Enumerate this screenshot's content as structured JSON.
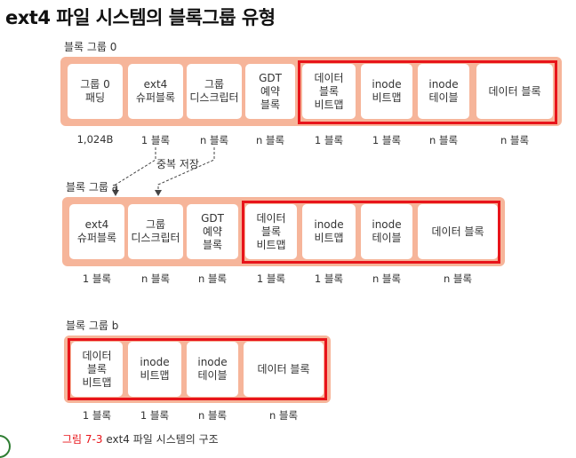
{
  "title": "ext4 파일 시스템의 블록그룹 유형",
  "groups": [
    {
      "label": "블록 그룹 0",
      "cells": [
        {
          "text": "그룹 0\n패딩",
          "size": "1,024B"
        },
        {
          "text": "ext4\n슈퍼블록",
          "size": "1 블록"
        },
        {
          "text": "그룹\n디스크립터",
          "size": "n 블록"
        },
        {
          "text": "GDT\n예약\n블록",
          "size": "n 블록"
        },
        {
          "text": "데이터\n블록\n비트맵",
          "size": "1 블록"
        },
        {
          "text": "inode\n비트맵",
          "size": "1 블록"
        },
        {
          "text": "inode\n테이블",
          "size": "n 블록"
        },
        {
          "text": "데이터 블록",
          "size": "n 블록"
        }
      ]
    },
    {
      "label": "블록 그룹 a",
      "cells": [
        {
          "text": "ext4\n슈퍼블록",
          "size": "1 블록"
        },
        {
          "text": "그룹\n디스크립터",
          "size": "n 블록"
        },
        {
          "text": "GDT\n예약\n블록",
          "size": "n 블록"
        },
        {
          "text": "데이터\n블록\n비트맵",
          "size": "1 블록"
        },
        {
          "text": "inode\n비트맵",
          "size": "1 블록"
        },
        {
          "text": "inode\n테이블",
          "size": "n 블록"
        },
        {
          "text": "데이터 블록",
          "size": "n 블록"
        }
      ]
    },
    {
      "label": "블록 그룹 b",
      "cells": [
        {
          "text": "데이터\n블록\n비트맵",
          "size": "1 블록"
        },
        {
          "text": "inode\n비트맵",
          "size": "1 블록"
        },
        {
          "text": "inode\n테이블",
          "size": "n 블록"
        },
        {
          "text": "데이터 블록",
          "size": "n 블록"
        }
      ]
    }
  ],
  "duplicate_label": "중복 저장",
  "caption": {
    "number": "그림 7-3",
    "text": "ext4 파일 시스템의 구조"
  },
  "colors": {
    "band": "#f6b59a",
    "highlight": "#e8141a"
  }
}
